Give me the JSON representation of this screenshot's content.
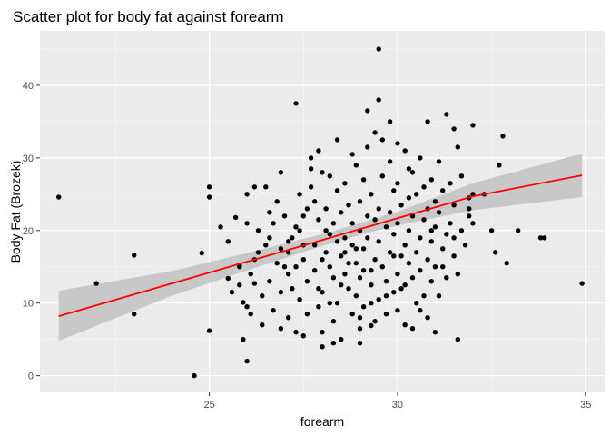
{
  "chart_data": {
    "type": "scatter",
    "title": "Scatter plot for body fat against forearm",
    "xlabel": "forearm",
    "ylabel": "Body Fat (Brozek)",
    "xlim": [
      20.5,
      35.5
    ],
    "ylim": [
      -2.3,
      47.5
    ],
    "xticks": [
      25,
      30,
      35
    ],
    "yticks": [
      0,
      10,
      20,
      30,
      40
    ],
    "grid": true,
    "legend": "none",
    "colors": {
      "panel": "#ebebeb",
      "grid_major": "#ffffff",
      "points": "#000000",
      "fit_line": "#ff0000",
      "confidence_band": "#c8c8c8"
    },
    "fit": {
      "method": "linear regression",
      "x": [
        21.0,
        24.0,
        26.0,
        28.0,
        29.0,
        30.0,
        32.0,
        34.9
      ],
      "y": [
        8.2,
        12.7,
        15.7,
        18.7,
        20.2,
        21.7,
        24.7,
        27.6
      ],
      "lower": [
        4.8,
        11.0,
        14.5,
        17.9,
        19.4,
        20.7,
        22.8,
        24.6
      ],
      "upper": [
        11.7,
        14.4,
        16.9,
        19.5,
        21.0,
        22.6,
        26.5,
        30.6
      ]
    },
    "points": [
      [
        21.0,
        24.6
      ],
      [
        22.0,
        12.7
      ],
      [
        23.0,
        16.6
      ],
      [
        23.0,
        8.5
      ],
      [
        24.6,
        0.0
      ],
      [
        24.8,
        16.9
      ],
      [
        25.0,
        26.0
      ],
      [
        25.0,
        24.6
      ],
      [
        25.0,
        6.2
      ],
      [
        25.5,
        13.4
      ],
      [
        25.7,
        21.8
      ],
      [
        25.6,
        11.5
      ],
      [
        25.8,
        15.2
      ],
      [
        25.8,
        15.0
      ],
      [
        25.9,
        5.0
      ],
      [
        25.9,
        10.1
      ],
      [
        26.0,
        2.0
      ],
      [
        26.0,
        21.0
      ],
      [
        26.1,
        14.0
      ],
      [
        26.1,
        8.5
      ],
      [
        26.2,
        12.7
      ],
      [
        26.2,
        26.0
      ],
      [
        26.2,
        16.0
      ],
      [
        26.3,
        20.0
      ],
      [
        26.4,
        7.0
      ],
      [
        26.4,
        11.0
      ],
      [
        26.5,
        26.0
      ],
      [
        26.5,
        18.0
      ],
      [
        26.6,
        19.0
      ],
      [
        26.6,
        13.0
      ],
      [
        26.7,
        21.0
      ],
      [
        26.7,
        9.0
      ],
      [
        26.8,
        15.5
      ],
      [
        26.9,
        17.5
      ],
      [
        26.9,
        11.5
      ],
      [
        26.9,
        6.5
      ],
      [
        27.0,
        22.0
      ],
      [
        27.1,
        14.0
      ],
      [
        27.1,
        17.0
      ],
      [
        27.1,
        8.0
      ],
      [
        27.2,
        12.0
      ],
      [
        27.2,
        19.0
      ],
      [
        27.3,
        20.5
      ],
      [
        27.3,
        6.0
      ],
      [
        27.3,
        15.0
      ],
      [
        27.4,
        10.5
      ],
      [
        27.4,
        25.0
      ],
      [
        27.5,
        16.0
      ],
      [
        27.5,
        18.0
      ],
      [
        27.5,
        22.0
      ],
      [
        27.6,
        8.5
      ],
      [
        27.6,
        13.0
      ],
      [
        27.7,
        30.0
      ],
      [
        27.7,
        28.5
      ],
      [
        27.7,
        26.0
      ],
      [
        27.8,
        24.0
      ],
      [
        27.8,
        18.0
      ],
      [
        27.8,
        14.5
      ],
      [
        27.9,
        21.5
      ],
      [
        27.9,
        12.0
      ],
      [
        27.9,
        9.5
      ],
      [
        28.0,
        4.0
      ],
      [
        28.0,
        6.0
      ],
      [
        28.0,
        11.5
      ],
      [
        28.1,
        17.0
      ],
      [
        28.1,
        20.0
      ],
      [
        28.1,
        23.0
      ],
      [
        28.2,
        15.0
      ],
      [
        28.2,
        19.5
      ],
      [
        28.2,
        27.5
      ],
      [
        28.3,
        13.5
      ],
      [
        28.3,
        7.5
      ],
      [
        28.3,
        21.0
      ],
      [
        28.4,
        25.5
      ],
      [
        28.4,
        18.5
      ],
      [
        28.4,
        10.0
      ],
      [
        28.5,
        16.5
      ],
      [
        28.5,
        22.5
      ],
      [
        28.5,
        5.0
      ],
      [
        28.6,
        14.0
      ],
      [
        28.6,
        19.0
      ],
      [
        28.6,
        26.5
      ],
      [
        28.7,
        12.0
      ],
      [
        28.7,
        23.5
      ],
      [
        28.8,
        18.0
      ],
      [
        28.8,
        8.5
      ],
      [
        28.8,
        21.0
      ],
      [
        28.9,
        15.5
      ],
      [
        28.9,
        29.0
      ],
      [
        28.9,
        11.0
      ],
      [
        29.0,
        20.0
      ],
      [
        29.0,
        24.0
      ],
      [
        29.0,
        13.5
      ],
      [
        29.0,
        4.5
      ],
      [
        29.1,
        17.5
      ],
      [
        29.1,
        27.0
      ],
      [
        29.1,
        9.5
      ],
      [
        29.2,
        22.0
      ],
      [
        29.2,
        19.0
      ],
      [
        29.2,
        31.5
      ],
      [
        29.3,
        14.5
      ],
      [
        29.3,
        12.5
      ],
      [
        29.3,
        25.0
      ],
      [
        29.4,
        16.0
      ],
      [
        29.4,
        21.5
      ],
      [
        29.4,
        7.5
      ],
      [
        29.5,
        18.5
      ],
      [
        29.5,
        23.0
      ],
      [
        29.5,
        10.5
      ],
      [
        29.6,
        32.5
      ],
      [
        29.6,
        15.0
      ],
      [
        29.6,
        27.5
      ],
      [
        29.7,
        20.5
      ],
      [
        29.7,
        13.0
      ],
      [
        29.7,
        8.5
      ],
      [
        29.8,
        22.5
      ],
      [
        29.8,
        17.0
      ],
      [
        29.8,
        29.5
      ],
      [
        29.9,
        11.5
      ],
      [
        29.9,
        25.5
      ],
      [
        29.9,
        19.5
      ],
      [
        30.0,
        14.0
      ],
      [
        30.0,
        21.0
      ],
      [
        30.0,
        9.0
      ],
      [
        30.0,
        26.5
      ],
      [
        30.1,
        16.5
      ],
      [
        30.1,
        23.5
      ],
      [
        30.1,
        12.0
      ],
      [
        30.2,
        18.0
      ],
      [
        30.2,
        31.0
      ],
      [
        30.2,
        7.0
      ],
      [
        30.3,
        20.0
      ],
      [
        30.3,
        15.5
      ],
      [
        30.3,
        24.5
      ],
      [
        30.4,
        13.5
      ],
      [
        30.4,
        28.0
      ],
      [
        30.4,
        22.0
      ],
      [
        30.5,
        17.0
      ],
      [
        30.5,
        10.0
      ],
      [
        30.5,
        25.0
      ],
      [
        30.6,
        19.0
      ],
      [
        30.6,
        14.5
      ],
      [
        30.6,
        30.0
      ],
      [
        30.7,
        21.5
      ],
      [
        30.7,
        11.0
      ],
      [
        30.7,
        26.0
      ],
      [
        30.8,
        16.0
      ],
      [
        30.8,
        23.0
      ],
      [
        30.8,
        8.0
      ],
      [
        30.9,
        18.5
      ],
      [
        30.9,
        27.0
      ],
      [
        30.9,
        13.0
      ],
      [
        31.0,
        20.5
      ],
      [
        31.0,
        24.0
      ],
      [
        31.0,
        15.0
      ],
      [
        31.1,
        22.5
      ],
      [
        31.1,
        11.0
      ],
      [
        31.1,
        29.5
      ],
      [
        31.2,
        17.5
      ],
      [
        31.2,
        25.5
      ],
      [
        31.3,
        13.5
      ],
      [
        31.3,
        19.5
      ],
      [
        31.4,
        21.0
      ],
      [
        31.4,
        26.5
      ],
      [
        31.5,
        16.5
      ],
      [
        31.5,
        23.5
      ],
      [
        31.6,
        14.0
      ],
      [
        31.6,
        31.5
      ],
      [
        31.7,
        20.0
      ],
      [
        31.7,
        27.5
      ],
      [
        31.8,
        18.0
      ],
      [
        31.9,
        22.0
      ],
      [
        31.9,
        24.5
      ],
      [
        32.0,
        25.0
      ],
      [
        32.0,
        21.0
      ],
      [
        29.4,
        33.5
      ],
      [
        29.5,
        38.0
      ],
      [
        29.5,
        45.0
      ],
      [
        30.8,
        35.0
      ],
      [
        31.3,
        36.0
      ],
      [
        31.5,
        34.0
      ],
      [
        31.6,
        5.0
      ],
      [
        27.3,
        37.5
      ],
      [
        28.4,
        32.5
      ],
      [
        29.0,
        6.5
      ],
      [
        29.3,
        6.9
      ],
      [
        30.3,
        28.5
      ],
      [
        31.9,
        23.0
      ],
      [
        32.0,
        34.5
      ],
      [
        32.3,
        25.0
      ],
      [
        32.5,
        20.0
      ],
      [
        32.6,
        17.0
      ],
      [
        32.7,
        29.0
      ],
      [
        32.8,
        33.0
      ],
      [
        32.9,
        15.5
      ],
      [
        33.2,
        20.0
      ],
      [
        33.8,
        19.0
      ],
      [
        33.9,
        19.0
      ],
      [
        34.9,
        12.7
      ],
      [
        26.6,
        22.5
      ],
      [
        27.0,
        15.0
      ],
      [
        27.4,
        20.0
      ],
      [
        27.6,
        23.0
      ],
      [
        28.0,
        16.0
      ],
      [
        28.2,
        10.0
      ],
      [
        28.5,
        12.5
      ],
      [
        28.7,
        15.5
      ],
      [
        28.9,
        17.5
      ],
      [
        29.1,
        14.5
      ],
      [
        29.3,
        10.0
      ],
      [
        29.7,
        11.0
      ],
      [
        29.9,
        16.5
      ],
      [
        30.2,
        12.5
      ],
      [
        30.6,
        9.0
      ],
      [
        30.9,
        20.0
      ],
      [
        31.2,
        15.0
      ],
      [
        31.5,
        19.0
      ],
      [
        29.8,
        35.0
      ],
      [
        28.6,
        17.0
      ],
      [
        27.1,
        18.5
      ],
      [
        26.8,
        24.0
      ],
      [
        26.3,
        17.0
      ],
      [
        25.8,
        12.5
      ],
      [
        25.5,
        18.5
      ],
      [
        26.0,
        9.5
      ],
      [
        27.5,
        5.5
      ],
      [
        28.3,
        4.5
      ],
      [
        29.0,
        8.0
      ],
      [
        30.4,
        6.5
      ],
      [
        31.0,
        6.0
      ],
      [
        30.0,
        32.0
      ],
      [
        29.2,
        36.5
      ],
      [
        28.8,
        30.5
      ],
      [
        28.0,
        28.0
      ],
      [
        27.9,
        31.0
      ],
      [
        26.9,
        28.0
      ],
      [
        26.0,
        25.0
      ],
      [
        25.3,
        20.5
      ]
    ]
  }
}
